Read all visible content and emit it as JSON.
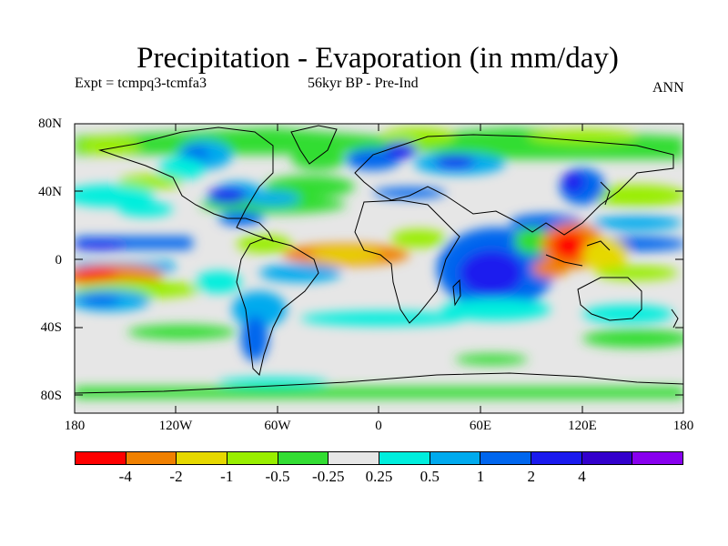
{
  "title": "Precipitation - Evaporation (in mm/day)",
  "subtitle_left": "Expt = tcmpq3-tcmfa3",
  "subtitle_center": "56kyr BP - Pre-Ind",
  "subtitle_right": "ANN",
  "axes": {
    "y_ticks": [
      "80N",
      "40N",
      "0",
      "40S",
      "80S"
    ],
    "x_ticks": [
      "180",
      "120W",
      "60W",
      "0",
      "60E",
      "120E",
      "180"
    ]
  },
  "colorbar": {
    "colors": [
      "#ff0000",
      "#f08000",
      "#e6d800",
      "#99ee00",
      "#33dd33",
      "#e6e6e6",
      "#00eedd",
      "#00aaee",
      "#0066ee",
      "#1a1aee",
      "#3300cc",
      "#8800ee"
    ],
    "labels": [
      "-4",
      "-2",
      "-1",
      "-0.5",
      "-0.25",
      "0.25",
      "0.5",
      "1",
      "2",
      "4"
    ]
  },
  "colors": {
    "background": "#e6e6e6",
    "coastline": "#000000"
  }
}
